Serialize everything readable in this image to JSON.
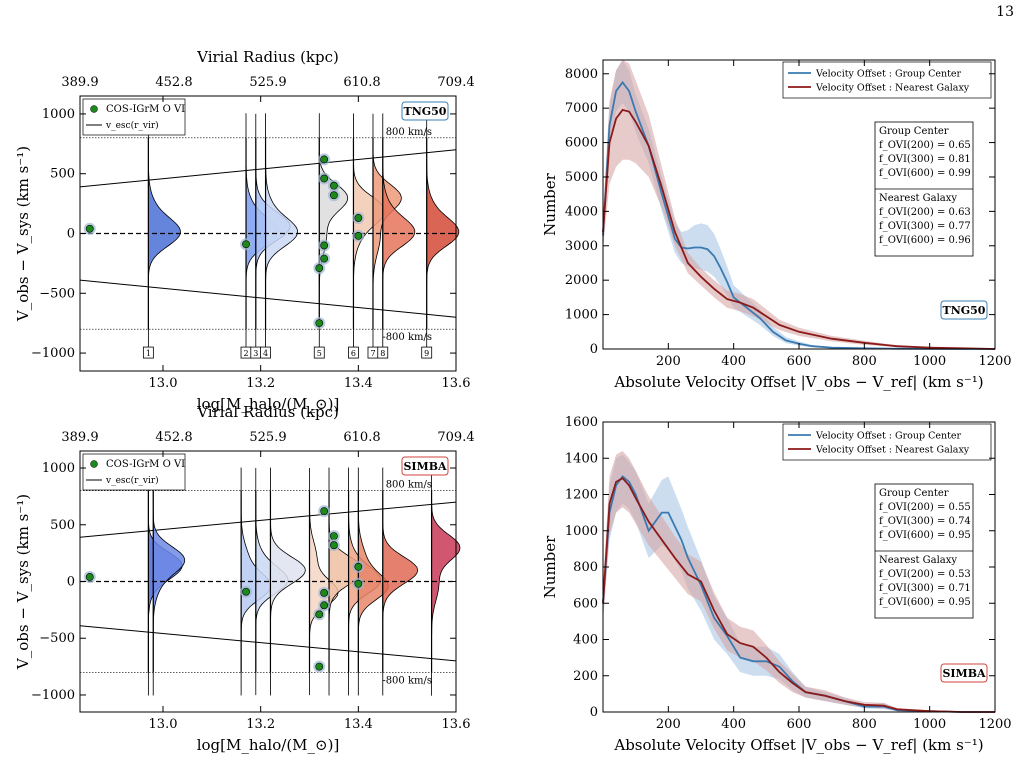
{
  "page_number": "13",
  "chart_data": [
    {
      "panel": "top-left",
      "type": "violin",
      "label_box": "TNG50",
      "label_color": "#3a7fb5",
      "top_axis_title": "Virial Radius (kpc)",
      "top_ticks": [
        "389.9",
        "452.8",
        "525.9",
        "610.8",
        "709.4"
      ],
      "xlabel": "log[M_halo/(M_⊙)]",
      "ylabel": "V_obs − V_sys (km s⁻¹)",
      "xlim": [
        12.83,
        13.6
      ],
      "ylim": [
        -1150,
        1150
      ],
      "xticks": [
        13.0,
        13.2,
        13.4,
        13.6
      ],
      "xtick_labels": [
        "13.0",
        "13.2",
        "13.4",
        "13.6"
      ],
      "yticks": [
        -1000,
        -500,
        0,
        500,
        1000
      ],
      "ytick_labels": [
        "−1000",
        "−500",
        "0",
        "500",
        "1000"
      ],
      "legend": [
        "COS-IGrM O VI",
        "v_esc(r_vir)"
      ],
      "ref_lines": {
        "upper": 800,
        "lower": -800,
        "upper_label": "800 km/s",
        "lower_label": "-800 km/s"
      },
      "escape_line": {
        "x": [
          12.83,
          13.6
        ],
        "upper": [
          390,
          700
        ],
        "lower": [
          -390,
          -700
        ]
      },
      "groups": [
        {
          "id": "1",
          "x": 12.97,
          "color": "#4a6fd6",
          "peak": 0
        },
        {
          "id": "2",
          "x": 13.17,
          "color": "#7b9cf0",
          "peak": 0
        },
        {
          "id": "3",
          "x": 13.19,
          "color": "#a9c2f7",
          "peak": 50
        },
        {
          "id": "4",
          "x": 13.21,
          "color": "#cad8f5",
          "peak": 0
        },
        {
          "id": "5",
          "x": 13.32,
          "color": "#dcdcdc",
          "peak": 300
        },
        {
          "id": "6",
          "x": 13.39,
          "color": "#f2c9b1",
          "peak": 200
        },
        {
          "id": "7",
          "x": 13.43,
          "color": "#ee9a7a",
          "peak": 300
        },
        {
          "id": "8",
          "x": 13.45,
          "color": "#e5735a",
          "peak": 0
        },
        {
          "id": "9",
          "x": 13.54,
          "color": "#d44a36",
          "peak": 0
        }
      ],
      "points": [
        {
          "x": 12.85,
          "y": 40
        },
        {
          "x": 13.17,
          "y": -90
        },
        {
          "x": 13.33,
          "y": 620
        },
        {
          "x": 13.33,
          "y": 460
        },
        {
          "x": 13.35,
          "y": 400
        },
        {
          "x": 13.35,
          "y": 320
        },
        {
          "x": 13.33,
          "y": -100
        },
        {
          "x": 13.33,
          "y": -210
        },
        {
          "x": 13.32,
          "y": -290
        },
        {
          "x": 13.32,
          "y": -750
        },
        {
          "x": 13.4,
          "y": 130
        },
        {
          "x": 13.4,
          "y": -20
        }
      ]
    },
    {
      "panel": "bottom-left",
      "type": "violin",
      "label_box": "SIMBA",
      "label_color": "#d0453b",
      "top_axis_title": "Virial Radius (kpc)",
      "top_ticks": [
        "389.9",
        "452.8",
        "525.9",
        "610.8",
        "709.4"
      ],
      "xlabel": "log[M_halo/(M_⊙)]",
      "ylabel": "V_obs − V_sys (km s⁻¹)",
      "xlim": [
        12.83,
        13.6
      ],
      "ylim": [
        -1150,
        1150
      ],
      "xticks": [
        13.0,
        13.2,
        13.4,
        13.6
      ],
      "xtick_labels": [
        "13.0",
        "13.2",
        "13.4",
        "13.6"
      ],
      "yticks": [
        -1000,
        -500,
        0,
        500,
        1000
      ],
      "ytick_labels": [
        "−1000",
        "−500",
        "0",
        "500",
        "1000"
      ],
      "legend": [
        "COS-IGrM O VI",
        "v_esc(r_vir)"
      ],
      "ref_lines": {
        "upper": 800,
        "lower": -800,
        "upper_label": "800 km/s",
        "lower_label": "-800 km/s"
      },
      "escape_line": {
        "x": [
          12.83,
          13.6
        ],
        "upper": [
          390,
          700
        ],
        "lower": [
          -390,
          -700
        ]
      },
      "groups": [
        {
          "id": "",
          "x": 12.97,
          "color": "#5068d4",
          "peak": 150
        },
        {
          "id": "",
          "x": 12.98,
          "color": "#6f8ae6",
          "peak": 200
        },
        {
          "id": "",
          "x": 13.16,
          "color": "#b5c9f2",
          "peak": -50
        },
        {
          "id": "",
          "x": 13.19,
          "color": "#cad8f5",
          "peak": 0
        },
        {
          "id": "",
          "x": 13.22,
          "color": "#dfe3ee",
          "peak": 100
        },
        {
          "id": "",
          "x": 13.3,
          "color": "#f3d6c4",
          "peak": -100
        },
        {
          "id": "",
          "x": 13.34,
          "color": "#efbfa3",
          "peak": 100
        },
        {
          "id": "",
          "x": 13.38,
          "color": "#eea386",
          "peak": 0
        },
        {
          "id": "",
          "x": 13.4,
          "color": "#e8866b",
          "peak": -50
        },
        {
          "id": "",
          "x": 13.45,
          "color": "#e06a55",
          "peak": 100
        },
        {
          "id": "",
          "x": 13.55,
          "color": "#c83a56",
          "peak": 300
        }
      ],
      "points": [
        {
          "x": 12.85,
          "y": 40
        },
        {
          "x": 13.17,
          "y": -90
        },
        {
          "x": 13.33,
          "y": 620
        },
        {
          "x": 13.35,
          "y": 400
        },
        {
          "x": 13.35,
          "y": 320
        },
        {
          "x": 13.33,
          "y": -100
        },
        {
          "x": 13.33,
          "y": -210
        },
        {
          "x": 13.32,
          "y": -290
        },
        {
          "x": 13.32,
          "y": -750
        },
        {
          "x": 13.4,
          "y": 130
        },
        {
          "x": 13.4,
          "y": -20
        }
      ]
    },
    {
      "panel": "top-right",
      "type": "line",
      "label_box": "TNG50",
      "label_color": "#3a7fb5",
      "xlabel": "Absolute Velocity Offset |V_obs − V_ref| (km s⁻¹)",
      "ylabel": "Number",
      "xlim": [
        0,
        1200
      ],
      "ylim": [
        0,
        8400
      ],
      "xticks": [
        200,
        400,
        600,
        800,
        1000,
        1200
      ],
      "xtick_labels": [
        "200",
        "400",
        "600",
        "800",
        "1000",
        "1200"
      ],
      "yticks": [
        0,
        1000,
        2000,
        3000,
        4000,
        5000,
        6000,
        7000,
        8000
      ],
      "ytick_labels": [
        "0",
        "1000",
        "2000",
        "3000",
        "4000",
        "5000",
        "6000",
        "7000",
        "8000"
      ],
      "legend": [
        "Velocity Offset : Group Center",
        "Velocity Offset : Nearest Galaxy"
      ],
      "stats": {
        "group_center": [
          "Group Center",
          "f_OVI(200) = 0.65",
          "f_OVI(300) = 0.81",
          "f_OVI(600) = 0.99"
        ],
        "nearest_galaxy": [
          "Nearest Galaxy",
          "f_OVI(200) = 0.63",
          "f_OVI(300) = 0.77",
          "f_OVI(600) = 0.96"
        ]
      },
      "series": [
        {
          "name": "Velocity Offset : Group Center",
          "color": "#3a7ab0",
          "band_color": "#a8c6e4",
          "x": [
            0,
            20,
            40,
            60,
            80,
            100,
            140,
            180,
            220,
            240,
            260,
            280,
            300,
            320,
            340,
            360,
            380,
            400,
            440,
            480,
            520,
            560,
            600,
            640,
            700,
            800,
            900,
            1000,
            1100,
            1200
          ],
          "y": [
            3300,
            6500,
            7500,
            7750,
            7500,
            6900,
            5900,
            4500,
            3200,
            2950,
            2920,
            2950,
            2950,
            2900,
            2700,
            2350,
            1950,
            1500,
            1200,
            900,
            500,
            250,
            150,
            80,
            40,
            20,
            10,
            5,
            0,
            0
          ],
          "lo": [
            2800,
            5900,
            6900,
            7150,
            6900,
            6300,
            5400,
            4000,
            2800,
            2500,
            2400,
            2350,
            2300,
            2250,
            2100,
            1850,
            1550,
            1200,
            950,
            700,
            380,
            170,
            100,
            50,
            25,
            10,
            5,
            2,
            0,
            0
          ],
          "hi": [
            3800,
            7100,
            8100,
            8400,
            8100,
            7400,
            6400,
            5000,
            3700,
            3400,
            3450,
            3600,
            3650,
            3600,
            3350,
            2900,
            2400,
            1850,
            1500,
            1150,
            650,
            350,
            220,
            120,
            60,
            30,
            15,
            8,
            0,
            0
          ]
        },
        {
          "name": "Velocity Offset : Nearest Galaxy",
          "color": "#8b1a1a",
          "band_color": "#d7a6a6",
          "x": [
            0,
            20,
            40,
            60,
            80,
            100,
            140,
            180,
            220,
            260,
            300,
            340,
            380,
            420,
            460,
            500,
            540,
            600,
            700,
            800,
            900,
            1000,
            1100,
            1200
          ],
          "y": [
            3400,
            6000,
            6700,
            6950,
            6900,
            6600,
            5900,
            4700,
            3400,
            2500,
            2100,
            1750,
            1450,
            1350,
            1200,
            950,
            700,
            500,
            300,
            180,
            80,
            40,
            20,
            0
          ],
          "lo": [
            2900,
            4800,
            5300,
            5500,
            5500,
            5400,
            5000,
            4100,
            3000,
            2200,
            1850,
            1500,
            1200,
            1100,
            950,
            750,
            550,
            380,
            220,
            120,
            50,
            20,
            10,
            0
          ],
          "hi": [
            3900,
            7200,
            8100,
            8400,
            8300,
            7800,
            6800,
            5300,
            3800,
            2800,
            2350,
            2000,
            1700,
            1600,
            1450,
            1150,
            850,
            620,
            380,
            240,
            110,
            60,
            30,
            0
          ]
        }
      ]
    },
    {
      "panel": "bottom-right",
      "type": "line",
      "label_box": "SIMBA",
      "label_color": "#d0453b",
      "xlabel": "Absolute Velocity Offset |V_obs − V_ref| (km s⁻¹)",
      "ylabel": "Number",
      "xlim": [
        0,
        1200
      ],
      "ylim": [
        0,
        1600
      ],
      "xticks": [
        200,
        400,
        600,
        800,
        1000,
        1200
      ],
      "xtick_labels": [
        "200",
        "400",
        "600",
        "800",
        "1000",
        "1200"
      ],
      "yticks": [
        0,
        200,
        400,
        600,
        800,
        1000,
        1200,
        1400,
        1600
      ],
      "ytick_labels": [
        "0",
        "200",
        "400",
        "600",
        "800",
        "1000",
        "1200",
        "1400",
        "1600"
      ],
      "legend": [
        "Velocity Offset : Group Center",
        "Velocity Offset : Nearest Galaxy"
      ],
      "stats": {
        "group_center": [
          "Group Center",
          "f_OVI(200) = 0.55",
          "f_OVI(300) = 0.74",
          "f_OVI(600) = 0.95"
        ],
        "nearest_galaxy": [
          "Nearest Galaxy",
          "f_OVI(200) = 0.53",
          "f_OVI(300) = 0.71",
          "f_OVI(600) = 0.95"
        ]
      },
      "series": [
        {
          "name": "Velocity Offset : Group Center",
          "color": "#3a7ab0",
          "band_color": "#a8c6e4",
          "x": [
            0,
            20,
            40,
            60,
            80,
            100,
            140,
            180,
            200,
            240,
            260,
            300,
            340,
            380,
            420,
            460,
            500,
            540,
            580,
            620,
            680,
            740,
            800,
            860,
            900,
            1000,
            1100,
            1200
          ],
          "y": [
            600,
            1100,
            1250,
            1300,
            1270,
            1200,
            1000,
            1100,
            1100,
            950,
            850,
            700,
            520,
            420,
            300,
            280,
            280,
            250,
            170,
            110,
            90,
            60,
            30,
            30,
            10,
            5,
            0,
            0
          ],
          "lo": [
            500,
            950,
            1100,
            1150,
            1120,
            1050,
            850,
            920,
            900,
            780,
            680,
            560,
            400,
            320,
            220,
            200,
            200,
            180,
            120,
            80,
            60,
            40,
            20,
            15,
            5,
            2,
            0,
            0
          ],
          "hi": [
            700,
            1250,
            1400,
            1420,
            1380,
            1330,
            1150,
            1280,
            1300,
            1120,
            1020,
            840,
            640,
            520,
            380,
            360,
            360,
            320,
            220,
            140,
            110,
            80,
            40,
            50,
            15,
            8,
            0,
            0
          ]
        },
        {
          "name": "Velocity Offset : Nearest Galaxy",
          "color": "#8b1a1a",
          "band_color": "#d7a6a6",
          "x": [
            0,
            20,
            40,
            60,
            80,
            100,
            140,
            180,
            220,
            260,
            300,
            340,
            380,
            420,
            460,
            500,
            540,
            580,
            620,
            680,
            740,
            800,
            860,
            900,
            1000,
            1100,
            1200
          ],
          "y": [
            600,
            1150,
            1270,
            1290,
            1250,
            1180,
            1050,
            950,
            850,
            760,
            720,
            560,
            430,
            380,
            360,
            300,
            220,
            160,
            110,
            90,
            60,
            40,
            35,
            15,
            5,
            0,
            0
          ],
          "lo": [
            500,
            980,
            1100,
            1130,
            1100,
            1040,
            920,
            830,
            740,
            650,
            610,
            460,
            340,
            300,
            280,
            230,
            160,
            110,
            80,
            60,
            40,
            25,
            20,
            8,
            2,
            0,
            0
          ],
          "hi": [
            700,
            1300,
            1420,
            1440,
            1400,
            1330,
            1190,
            1080,
            970,
            870,
            830,
            660,
            520,
            470,
            450,
            370,
            280,
            210,
            140,
            120,
            80,
            55,
            50,
            22,
            8,
            0,
            0
          ]
        }
      ]
    }
  ]
}
